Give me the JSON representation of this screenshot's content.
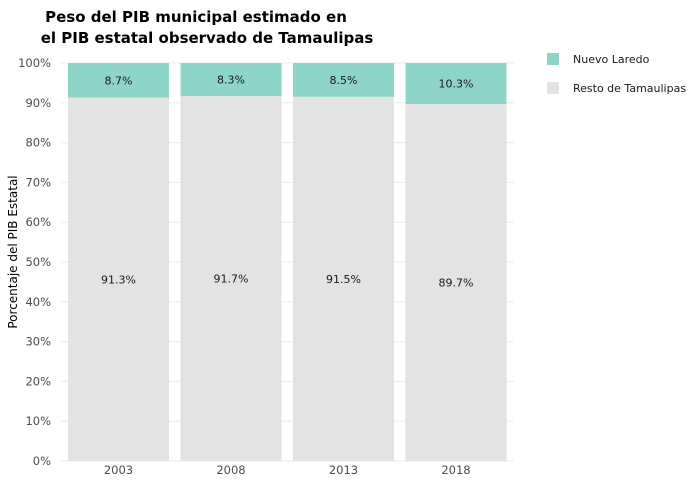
{
  "chart_data": {
    "type": "bar",
    "stacked": true,
    "title_lines": [
      "Peso del PIB municipal estimado en",
      "el PIB estatal observado de Tamaulipas"
    ],
    "xlabel": "",
    "ylabel": "Porcentaje del PIB Estatal",
    "ylim": [
      0,
      100
    ],
    "yticks": [
      "0%",
      "10%",
      "20%",
      "30%",
      "40%",
      "50%",
      "60%",
      "70%",
      "80%",
      "90%",
      "100%"
    ],
    "categories": [
      "2003",
      "2008",
      "2013",
      "2018"
    ],
    "series": [
      {
        "name": "Resto de Tamaulipas",
        "color": "#e3e3e3",
        "values": [
          91.3,
          91.7,
          91.5,
          89.7
        ],
        "labels": [
          "91.3%",
          "91.7%",
          "91.5%",
          "89.7%"
        ]
      },
      {
        "name": "Nuevo Laredo",
        "color": "#8fd4c8",
        "values": [
          8.7,
          8.3,
          8.5,
          10.3
        ],
        "labels": [
          "8.7%",
          "8.3%",
          "8.5%",
          "10.3%"
        ]
      }
    ],
    "legend_order": [
      "Nuevo Laredo",
      "Resto de Tamaulipas"
    ],
    "legend_position": "right",
    "grid": true
  }
}
